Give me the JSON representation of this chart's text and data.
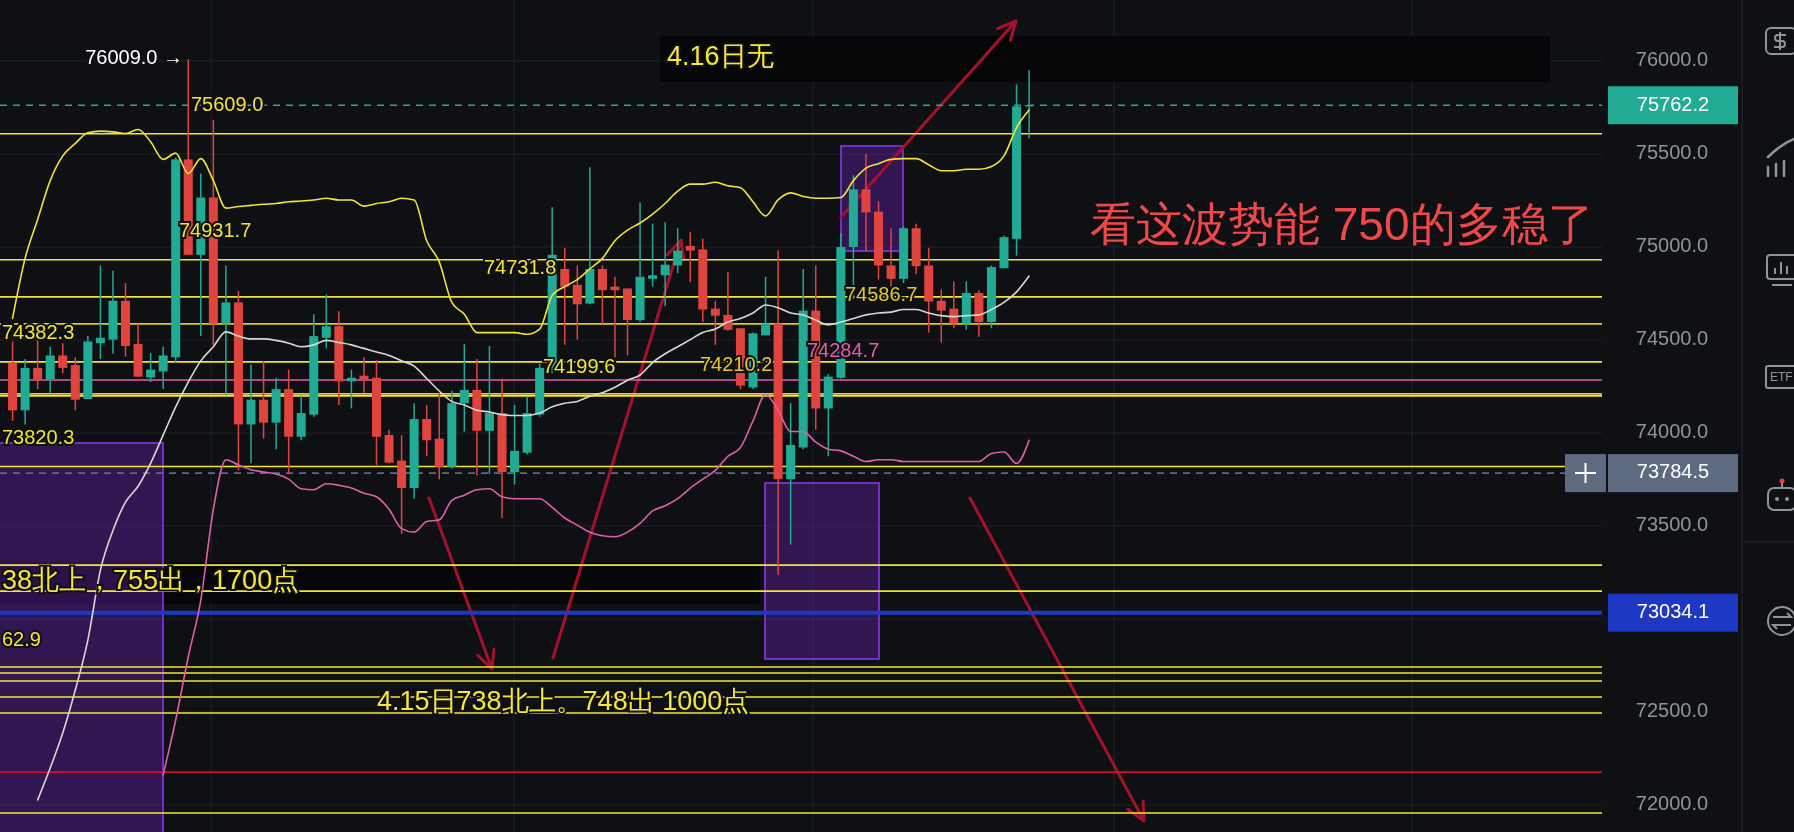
{
  "chart_data": {
    "type": "candlestick",
    "categories": [
      null,
      null,
      null,
      null,
      null,
      null,
      null,
      null,
      null,
      null,
      null,
      null,
      null,
      null,
      null,
      null,
      null,
      null,
      null,
      null,
      null,
      null,
      null,
      null,
      null,
      null,
      null,
      null,
      null,
      null,
      null,
      null,
      null,
      null,
      null,
      null,
      null,
      null,
      null,
      null,
      null,
      null,
      null,
      null,
      null,
      null,
      null,
      null,
      null,
      null,
      null,
      null,
      null,
      null,
      null,
      null,
      null,
      null,
      null,
      null,
      null,
      null,
      null,
      null,
      null,
      null,
      null,
      null,
      null,
      null,
      null,
      null,
      null,
      null,
      null,
      null,
      null,
      null,
      null,
      null,
      null,
      null
    ],
    "ohlc": [
      [
        74378,
        74492,
        74065,
        74122
      ],
      [
        74122,
        74398,
        74046,
        74350
      ],
      [
        74350,
        74512,
        74236,
        74289
      ],
      [
        74289,
        74464,
        74217,
        74417
      ],
      [
        74417,
        74483,
        74322,
        74350
      ],
      [
        74365,
        74407,
        74122,
        74179
      ],
      [
        74183,
        74521,
        74183,
        74492
      ],
      [
        74483,
        74901,
        74398,
        74512
      ],
      [
        74502,
        74873,
        74426,
        74711
      ],
      [
        74711,
        74806,
        74411,
        74468
      ],
      [
        74479,
        74588,
        74303,
        74303
      ],
      [
        74299,
        74430,
        74274,
        74341
      ],
      [
        74331,
        74464,
        74236,
        74417
      ],
      [
        74407,
        75481,
        74378,
        75471
      ],
      [
        75471,
        76009,
        74958,
        74958
      ],
      [
        74958,
        75395,
        74521,
        75266
      ],
      [
        75266,
        75684,
        74474,
        74588
      ],
      [
        74588,
        74901,
        74207,
        74702
      ],
      [
        74702,
        74764,
        73799,
        74046
      ],
      [
        74046,
        74369,
        73837,
        74179
      ],
      [
        74179,
        74388,
        73970,
        74056
      ],
      [
        74056,
        74297,
        73913,
        74236
      ],
      [
        74236,
        74341,
        73780,
        73980
      ],
      [
        73980,
        74202,
        73961,
        74107
      ],
      [
        74099,
        74639,
        74088,
        74521
      ],
      [
        74512,
        74745,
        74455,
        74574
      ],
      [
        74574,
        74654,
        74151,
        74278
      ],
      [
        74278,
        74341,
        74132,
        74297
      ],
      [
        74308,
        74407,
        74217,
        74289
      ],
      [
        74297,
        74392,
        73828,
        73980
      ],
      [
        73989,
        74017,
        73837,
        73841
      ],
      [
        73852,
        73989,
        73457,
        73704
      ],
      [
        73704,
        74160,
        73647,
        74075
      ],
      [
        74075,
        74151,
        73875,
        73961
      ],
      [
        73970,
        74217,
        73752,
        73818
      ],
      [
        73818,
        74227,
        73809,
        74160
      ],
      [
        74160,
        74479,
        74008,
        74232
      ],
      [
        74232,
        74398,
        73771,
        74012
      ],
      [
        74012,
        74468,
        73780,
        74107
      ],
      [
        74107,
        74293,
        73543,
        73790
      ],
      [
        73790,
        74151,
        73723,
        73904
      ],
      [
        73894,
        74198,
        73885,
        74107
      ],
      [
        74099,
        74373,
        74088,
        74350
      ],
      [
        74350,
        75214,
        74322,
        74958
      ],
      [
        74882,
        74996,
        74474,
        74787
      ],
      [
        74797,
        74901,
        74502,
        74692
      ],
      [
        74696,
        75429,
        74692,
        74882
      ],
      [
        74882,
        74901,
        74588,
        74768
      ],
      [
        74787,
        74840,
        74407,
        74768
      ],
      [
        74777,
        74777,
        74417,
        74607
      ],
      [
        74607,
        75239,
        74597,
        74840
      ],
      [
        74829,
        75125,
        74787,
        74848
      ],
      [
        74848,
        75133,
        74682,
        74905
      ],
      [
        74901,
        75101,
        74859,
        74981
      ],
      [
        75006,
        75082,
        74810,
        74981
      ],
      [
        74987,
        75044,
        74597,
        74664
      ],
      [
        74669,
        74711,
        74474,
        74631
      ],
      [
        74635,
        74867,
        74550,
        74555
      ],
      [
        74563,
        74563,
        74236,
        74255
      ],
      [
        74245,
        74540,
        74236,
        74536
      ],
      [
        74525,
        74840,
        74525,
        74588
      ],
      [
        74588,
        74981,
        73237,
        73752
      ],
      [
        73752,
        74160,
        73400,
        73936
      ],
      [
        73922,
        74882,
        73913,
        74658
      ],
      [
        74658,
        74901,
        74017,
        74132
      ],
      [
        74132,
        74316,
        73875,
        74303
      ],
      [
        74297,
        75076,
        74293,
        75000
      ],
      [
        75000,
        75385,
        74721,
        75310
      ],
      [
        75310,
        75500,
        74977,
        75186
      ],
      [
        75190,
        75247,
        74825,
        74901
      ],
      [
        74901,
        75101,
        74787,
        74829
      ],
      [
        74829,
        75110,
        74806,
        75101
      ],
      [
        75101,
        75125,
        74854,
        74897
      ],
      [
        74901,
        74996,
        74540,
        74707
      ],
      [
        74711,
        74772,
        74487,
        74658
      ],
      [
        74669,
        74816,
        74563,
        74588
      ],
      [
        74588,
        74816,
        74555,
        74753
      ],
      [
        74753,
        74768,
        74517,
        74597
      ],
      [
        74597,
        74901,
        74563,
        74892
      ],
      [
        74886,
        75062,
        74886,
        75053
      ],
      [
        75044,
        75874,
        74954,
        75756
      ],
      [
        75756,
        75950,
        75585,
        75762.2
      ]
    ],
    "colors": [
      "#e0443f",
      "#22ab94",
      "#e0443f",
      "#22ab94",
      "#e0443f",
      "#e0443f",
      "#22ab94",
      "#22ab94",
      "#22ab94",
      "#e0443f",
      "#e0443f",
      "#22ab94",
      "#22ab94",
      "#22ab94",
      "#e0443f",
      "#22ab94",
      "#e0443f",
      "#22ab94",
      "#e0443f",
      "#22ab94",
      "#e0443f",
      "#22ab94",
      "#e0443f",
      "#22ab94",
      "#22ab94",
      "#22ab94",
      "#e0443f",
      "#22ab94",
      "#e0443f",
      "#e0443f",
      "#e0443f",
      "#e0443f",
      "#22ab94",
      "#e0443f",
      "#e0443f",
      "#22ab94",
      "#22ab94",
      "#e0443f",
      "#22ab94",
      "#e0443f",
      "#22ab94",
      "#22ab94",
      "#22ab94",
      "#22ab94",
      "#e0443f",
      "#e0443f",
      "#22ab94",
      "#e0443f",
      "#e0443f",
      "#e0443f",
      "#22ab94",
      "#22ab94",
      "#22ab94",
      "#22ab94",
      "#e0443f",
      "#e0443f",
      "#e0443f",
      "#e0443f",
      "#e0443f",
      "#22ab94",
      "#22ab94",
      "#e0443f",
      "#22ab94",
      "#22ab94",
      "#e0443f",
      "#22ab94",
      "#22ab94",
      "#22ab94",
      "#e0443f",
      "#e0443f",
      "#e0443f",
      "#22ab94",
      "#e0443f",
      "#e0443f",
      "#e0443f",
      "#e0443f",
      "#22ab94",
      "#e0443f",
      "#22ab94",
      "#22ab94",
      "#22ab94",
      "#22ab94"
    ],
    "series": [
      {
        "type": "line",
        "color": "#f2e33a",
        "values": [
          74616,
          74939,
          75148,
          75357,
          75490,
          75557,
          75614,
          75623,
          75619,
          75610,
          75632,
          75566,
          75471,
          75505,
          75395,
          75475,
          75357,
          75209,
          75218,
          75224,
          75230,
          75234,
          75243,
          75247,
          75253,
          75262,
          75253,
          75253,
          75220,
          75234,
          75243,
          75262,
          75253,
          75034,
          74920,
          74702,
          74639,
          74540,
          74540,
          74540,
          74540,
          74531,
          74559,
          74740,
          74787,
          74825,
          74882,
          74939,
          75034,
          75091,
          75129,
          75177,
          75234,
          75300,
          75338,
          75338,
          75348,
          75329,
          75319,
          75243,
          75167,
          75253,
          75291,
          75272,
          75262,
          75262,
          75266,
          75357,
          75424,
          75448,
          75471,
          75475,
          75475,
          75442,
          75410,
          75410,
          75418,
          75418,
          75433,
          75490,
          75642,
          75737
        ]
      },
      {
        "type": "line",
        "color": "#d9d9d0",
        "values": [
          null,
          null,
          72027,
          72199,
          72387,
          72618,
          72887,
          73263,
          73476,
          73628,
          73714,
          73837,
          73989,
          74141,
          74274,
          74388,
          74464,
          74544,
          74521,
          74506,
          74506,
          74498,
          74483,
          74464,
          74474,
          74498,
          74487,
          74474,
          74455,
          74436,
          74417,
          74388,
          74360,
          74293,
          74226,
          74170,
          74151,
          74122,
          74113,
          74099,
          74094,
          74094,
          74107,
          74141,
          74160,
          74170,
          74198,
          74217,
          74246,
          74284,
          74312,
          74379,
          74426,
          74464,
          74502,
          74540,
          74559,
          74597,
          74616,
          74645,
          74688,
          74673,
          74645,
          74635,
          74607,
          74582,
          74597,
          74616,
          74635,
          74645,
          74650,
          74664,
          74664,
          74645,
          74631,
          74626,
          74631,
          74635,
          74664,
          74702,
          74759,
          74844
        ]
      },
      {
        "type": "line",
        "color": "#e05fa8",
        "values": [
          null,
          null,
          null,
          null,
          null,
          null,
          null,
          null,
          null,
          null,
          null,
          null,
          72161,
          72457,
          72796,
          73102,
          73590,
          73856,
          73828,
          73803,
          73790,
          73780,
          73752,
          73700,
          73695,
          73727,
          73719,
          73704,
          73676,
          73657,
          73590,
          73486,
          73467,
          73524,
          73533,
          73638,
          73666,
          73695,
          73700,
          73657,
          73647,
          73647,
          73647,
          73600,
          73543,
          73505,
          73467,
          73448,
          73442,
          73467,
          73514,
          73581,
          73609,
          73647,
          73704,
          73752,
          73799,
          73875,
          73922,
          74065,
          74207,
          74122,
          74008,
          74008,
          73951,
          73913,
          73904,
          73875,
          73847,
          73856,
          73856,
          73847,
          73847,
          73847,
          73847,
          73847,
          73847,
          73847,
          73890,
          73898,
          73837,
          73961
        ]
      }
    ],
    "ylim": [
      71855,
      76328
    ],
    "yticks": [
      {
        "value": 72000,
        "label": "72000.0"
      },
      {
        "value": 72500,
        "label": "72500.0"
      },
      {
        "value": 73000,
        "label": null
      },
      {
        "value": 73500,
        "label": "73500.0"
      },
      {
        "value": 74000,
        "label": "74000.0"
      },
      {
        "value": 74500,
        "label": "74500.0"
      },
      {
        "value": 75000,
        "label": "75000.0"
      },
      {
        "value": 75500,
        "label": "75500.0"
      },
      {
        "value": 76000,
        "label": "76000.0"
      }
    ],
    "tick_labels": "y",
    "grid": true,
    "ref_lines": [
      {
        "axis": "y",
        "value": 75762.2,
        "label": "75762.2",
        "color": "#22ab94",
        "line_style": "dashed"
      },
      {
        "axis": "y",
        "value": 73784.5,
        "label": "73784.5",
        "color": "#5d6a80",
        "line_style": "dashed"
      },
      {
        "axis": "y",
        "value": 73034.1,
        "label": "73034.1",
        "color": "#1f38c4"
      },
      {
        "axis": "y",
        "value": 75609.0,
        "label": "75609.0",
        "color": "#f2e33a"
      },
      {
        "axis": "y",
        "value": 74931.7,
        "label": "74931.7",
        "color": "#f2e33a"
      },
      {
        "axis": "y",
        "value": 74731.8,
        "label": "74731.8",
        "color": "#f2e33a"
      },
      {
        "axis": "y",
        "value": 74586.7,
        "label": "74586.7",
        "color": "#e3c62a"
      },
      {
        "axis": "y",
        "value": 74382.3,
        "label": "74382.3",
        "color": "#f2e33a"
      },
      {
        "axis": "y",
        "value": 74199.6,
        "label": "74199.6",
        "color": "#f2e33a"
      },
      {
        "axis": "y",
        "value": 74210.2,
        "label": "74210.2",
        "color": "#e3c62a"
      },
      {
        "axis": "y",
        "value": 74284.7,
        "label": "74284.7",
        "color": "#e05fa8"
      },
      {
        "axis": "y",
        "value": 73820.3,
        "label": "73820.3",
        "color": "#f2e33a"
      },
      {
        "axis": "y",
        "value": 73290,
        "color": "#f2e33a"
      },
      {
        "axis": "y",
        "value": 73150,
        "color": "#f2e33a"
      },
      {
        "axis": "y",
        "value": 72742,
        "color": "#f2e33a"
      },
      {
        "axis": "y",
        "value": 72710,
        "color": "#f2e33a"
      },
      {
        "axis": "y",
        "value": 72667,
        "color": "#f2e33a"
      },
      {
        "axis": "y",
        "value": 72581,
        "color": "#f2e33a"
      },
      {
        "axis": "y",
        "value": 72495,
        "color": "#f2e33a"
      },
      {
        "axis": "y",
        "value": 72177,
        "color": "#c8102e"
      },
      {
        "axis": "y",
        "value": 71957,
        "color": "#f2e33a"
      }
    ],
    "annotations": [
      "4.16日无",
      "看这波势能 750的多稳了",
      "38北上，755出，1700点",
      "4.15日738北上。748出 1000点",
      "62.9",
      "76009.0 →",
      "ETF"
    ]
  }
}
